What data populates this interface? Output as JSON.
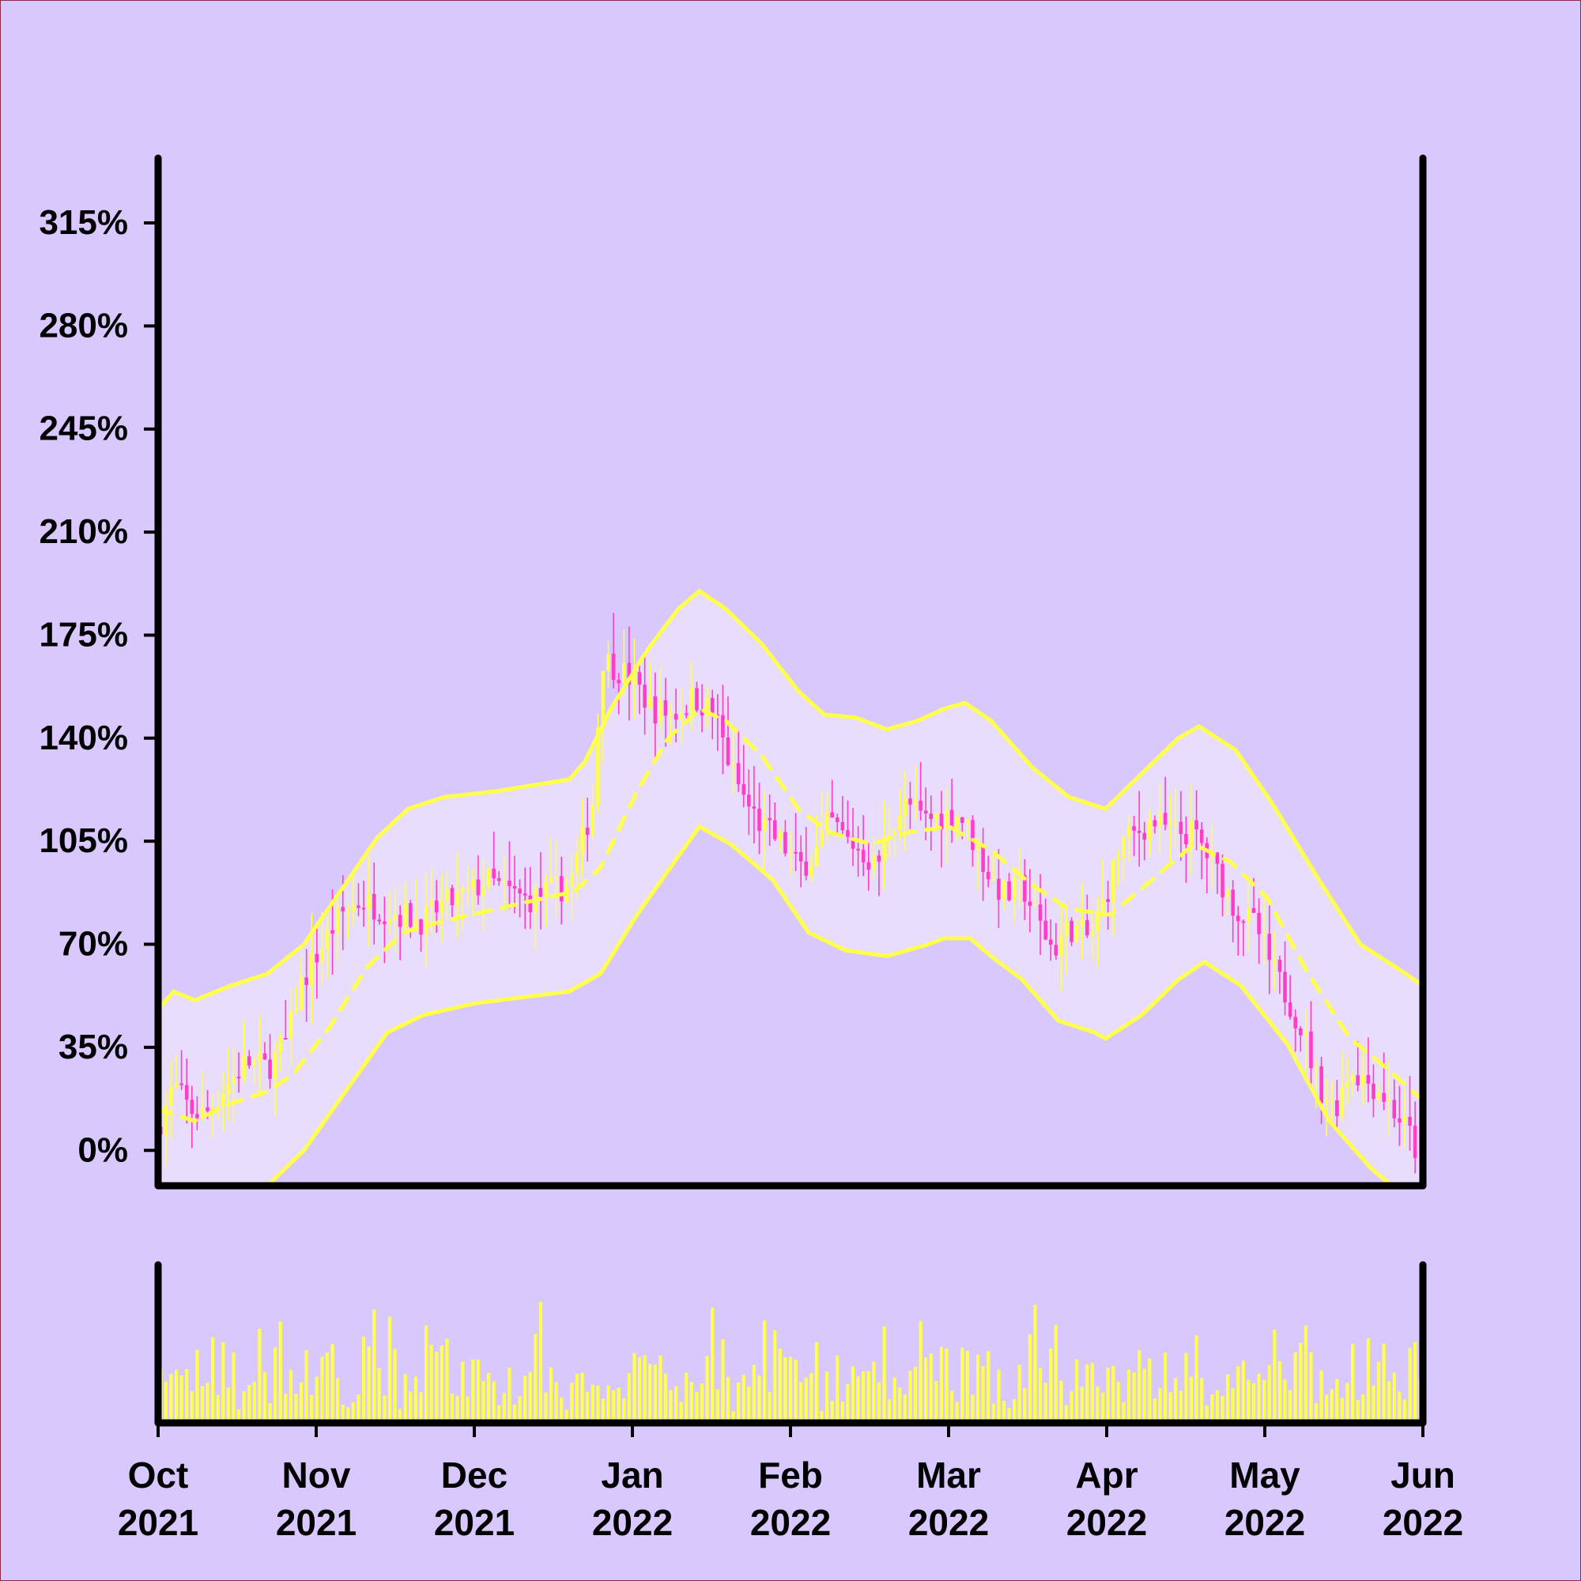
{
  "chart_data": {
    "type": "candlestick",
    "title": "",
    "xlabel": "",
    "ylabel": "",
    "y_tick_labels": [
      "0%",
      "35%",
      "70%",
      "105%",
      "140%",
      "175%",
      "210%",
      "245%",
      "280%",
      "315%"
    ],
    "y_tick_values": [
      0,
      35,
      70,
      105,
      140,
      175,
      210,
      245,
      280,
      315
    ],
    "ylim": [
      -12,
      337
    ],
    "x_tick_labels": [
      {
        "month": "Oct",
        "year": "2021"
      },
      {
        "month": "Nov",
        "year": "2021"
      },
      {
        "month": "Dec",
        "year": "2021"
      },
      {
        "month": "Jan",
        "year": "2022"
      },
      {
        "month": "Feb",
        "year": "2022"
      },
      {
        "month": "Mar",
        "year": "2022"
      },
      {
        "month": "Apr",
        "year": "2022"
      },
      {
        "month": "May",
        "year": "2022"
      },
      {
        "month": "Jun",
        "year": "2022"
      }
    ],
    "xlim": [
      "2021-10-01",
      "2022-06-01"
    ],
    "close_series": [
      [
        "2021-10-01",
        8
      ],
      [
        "2021-10-04",
        22
      ],
      [
        "2021-10-07",
        14
      ],
      [
        "2021-10-10",
        12
      ],
      [
        "2021-10-14",
        22
      ],
      [
        "2021-10-18",
        30
      ],
      [
        "2021-10-22",
        28
      ],
      [
        "2021-10-26",
        38
      ],
      [
        "2021-10-28",
        55
      ],
      [
        "2021-11-01",
        68
      ],
      [
        "2021-11-05",
        80
      ],
      [
        "2021-11-09",
        85
      ],
      [
        "2021-11-13",
        82
      ],
      [
        "2021-11-17",
        80
      ],
      [
        "2021-11-21",
        78
      ],
      [
        "2021-11-25",
        84
      ],
      [
        "2021-11-29",
        86
      ],
      [
        "2021-12-03",
        92
      ],
      [
        "2021-12-07",
        88
      ],
      [
        "2021-12-11",
        85
      ],
      [
        "2021-12-15",
        88
      ],
      [
        "2021-12-19",
        90
      ],
      [
        "2021-12-22",
        108
      ],
      [
        "2021-12-24",
        122
      ],
      [
        "2021-12-25",
        168
      ],
      [
        "2021-12-28",
        164
      ],
      [
        "2021-12-31",
        160
      ],
      [
        "2022-01-04",
        150
      ],
      [
        "2022-01-08",
        148
      ],
      [
        "2022-01-12",
        154
      ],
      [
        "2022-01-16",
        148
      ],
      [
        "2022-01-19",
        130
      ],
      [
        "2022-01-22",
        118
      ],
      [
        "2022-01-25",
        110
      ],
      [
        "2022-01-29",
        104
      ],
      [
        "2022-02-01",
        96
      ],
      [
        "2022-02-04",
        100
      ],
      [
        "2022-02-07",
        112
      ],
      [
        "2022-02-10",
        106
      ],
      [
        "2022-02-13",
        102
      ],
      [
        "2022-02-16",
        96
      ],
      [
        "2022-02-19",
        112
      ],
      [
        "2022-02-22",
        118
      ],
      [
        "2022-02-25",
        112
      ],
      [
        "2022-03-01",
        114
      ],
      [
        "2022-03-04",
        114
      ],
      [
        "2022-03-07",
        104
      ],
      [
        "2022-03-10",
        92
      ],
      [
        "2022-03-13",
        86
      ],
      [
        "2022-03-16",
        90
      ],
      [
        "2022-03-19",
        78
      ],
      [
        "2022-03-22",
        68
      ],
      [
        "2022-03-25",
        76
      ],
      [
        "2022-03-29",
        72
      ],
      [
        "2022-04-01",
        86
      ],
      [
        "2022-04-04",
        104
      ],
      [
        "2022-04-07",
        108
      ],
      [
        "2022-04-10",
        112
      ],
      [
        "2022-04-14",
        108
      ],
      [
        "2022-04-18",
        108
      ],
      [
        "2022-04-22",
        96
      ],
      [
        "2022-04-26",
        82
      ],
      [
        "2022-04-30",
        76
      ],
      [
        "2022-05-03",
        62
      ],
      [
        "2022-05-06",
        52
      ],
      [
        "2022-05-09",
        40
      ],
      [
        "2022-05-12",
        22
      ],
      [
        "2022-05-15",
        14
      ],
      [
        "2022-05-18",
        28
      ],
      [
        "2022-05-21",
        24
      ],
      [
        "2022-05-24",
        20
      ],
      [
        "2022-05-27",
        12
      ],
      [
        "2022-05-30",
        4
      ],
      [
        "2022-06-01",
        -10
      ]
    ],
    "moving_average": [
      [
        "2021-10-01",
        14
      ],
      [
        "2021-10-08",
        10
      ],
      [
        "2021-10-15",
        16
      ],
      [
        "2021-10-22",
        20
      ],
      [
        "2021-10-27",
        26
      ],
      [
        "2021-11-03",
        42
      ],
      [
        "2021-11-10",
        62
      ],
      [
        "2021-11-17",
        74
      ],
      [
        "2021-11-25",
        78
      ],
      [
        "2021-12-05",
        82
      ],
      [
        "2021-12-15",
        86
      ],
      [
        "2021-12-20",
        88
      ],
      [
        "2021-12-25",
        96
      ],
      [
        "2022-01-01",
        122
      ],
      [
        "2022-01-07",
        140
      ],
      [
        "2022-01-13",
        150
      ],
      [
        "2022-01-18",
        146
      ],
      [
        "2022-01-25",
        134
      ],
      [
        "2022-02-01",
        116
      ],
      [
        "2022-02-07",
        108
      ],
      [
        "2022-02-15",
        104
      ],
      [
        "2022-02-22",
        108
      ],
      [
        "2022-03-02",
        110
      ],
      [
        "2022-03-10",
        102
      ],
      [
        "2022-03-18",
        90
      ],
      [
        "2022-03-25",
        82
      ],
      [
        "2022-04-02",
        80
      ],
      [
        "2022-04-10",
        92
      ],
      [
        "2022-04-18",
        104
      ],
      [
        "2022-04-25",
        98
      ],
      [
        "2022-05-02",
        86
      ],
      [
        "2022-05-10",
        60
      ],
      [
        "2022-05-18",
        38
      ],
      [
        "2022-05-25",
        28
      ],
      [
        "2022-06-01",
        17
      ]
    ],
    "upper_band": [
      [
        "2021-10-01",
        48
      ],
      [
        "2021-10-04",
        54
      ],
      [
        "2021-10-08",
        51
      ],
      [
        "2021-10-15",
        56
      ],
      [
        "2021-10-22",
        60
      ],
      [
        "2021-10-29",
        70
      ],
      [
        "2021-11-05",
        88
      ],
      [
        "2021-11-12",
        106
      ],
      [
        "2021-11-18",
        116
      ],
      [
        "2021-11-25",
        120
      ],
      [
        "2021-12-05",
        122
      ],
      [
        "2021-12-12",
        124
      ],
      [
        "2021-12-19",
        126
      ],
      [
        "2021-12-22",
        132
      ],
      [
        "2021-12-27",
        150
      ],
      [
        "2022-01-03",
        170
      ],
      [
        "2022-01-09",
        184
      ],
      [
        "2022-01-13",
        190
      ],
      [
        "2022-01-18",
        184
      ],
      [
        "2022-01-25",
        172
      ],
      [
        "2022-02-01",
        156
      ],
      [
        "2022-02-06",
        148
      ],
      [
        "2022-02-12",
        147
      ],
      [
        "2022-02-18",
        143
      ],
      [
        "2022-02-24",
        146
      ],
      [
        "2022-03-01",
        150
      ],
      [
        "2022-03-05",
        152
      ],
      [
        "2022-03-10",
        146
      ],
      [
        "2022-03-18",
        130
      ],
      [
        "2022-03-25",
        120
      ],
      [
        "2022-04-01",
        116
      ],
      [
        "2022-04-08",
        128
      ],
      [
        "2022-04-15",
        140
      ],
      [
        "2022-04-19",
        144
      ],
      [
        "2022-04-26",
        136
      ],
      [
        "2022-05-03",
        118
      ],
      [
        "2022-05-12",
        92
      ],
      [
        "2022-05-20",
        70
      ],
      [
        "2022-05-27",
        62
      ],
      [
        "2022-06-01",
        56
      ]
    ],
    "lower_band": [
      [
        "2021-10-22",
        -12
      ],
      [
        "2021-10-29",
        0
      ],
      [
        "2021-11-06",
        20
      ],
      [
        "2021-11-14",
        40
      ],
      [
        "2021-11-21",
        46
      ],
      [
        "2021-12-01",
        50
      ],
      [
        "2021-12-10",
        52
      ],
      [
        "2021-12-19",
        54
      ],
      [
        "2021-12-25",
        60
      ],
      [
        "2022-01-01",
        80
      ],
      [
        "2022-01-09",
        100
      ],
      [
        "2022-01-13",
        110
      ],
      [
        "2022-01-19",
        104
      ],
      [
        "2022-01-27",
        92
      ],
      [
        "2022-02-03",
        74
      ],
      [
        "2022-02-10",
        68
      ],
      [
        "2022-02-18",
        66
      ],
      [
        "2022-02-26",
        70
      ],
      [
        "2022-03-01",
        72
      ],
      [
        "2022-03-06",
        72
      ],
      [
        "2022-03-10",
        66
      ],
      [
        "2022-03-16",
        58
      ],
      [
        "2022-03-23",
        44
      ],
      [
        "2022-03-30",
        40
      ],
      [
        "2022-04-01",
        38
      ],
      [
        "2022-04-08",
        46
      ],
      [
        "2022-04-15",
        58
      ],
      [
        "2022-04-20",
        64
      ],
      [
        "2022-04-27",
        56
      ],
      [
        "2022-05-06",
        36
      ],
      [
        "2022-05-14",
        10
      ],
      [
        "2022-05-22",
        -6
      ],
      [
        "2022-05-26",
        -12
      ]
    ],
    "volume_relative": [
      0.45,
      0.2,
      0.6,
      0.95,
      0.3,
      0.4,
      0.85,
      0.7,
      0.25,
      0.4,
      0.6,
      0.5,
      0.3,
      0.75,
      0.55,
      0.2,
      0.45,
      0.6,
      0.35,
      0.5,
      0.8,
      0.3,
      0.4,
      0.55,
      0.25,
      0.6,
      0.45,
      0.7,
      0.2,
      0.35,
      0.5,
      0.15,
      0.3,
      0.45,
      0.6,
      0.2,
      0.25,
      0.4,
      0.55,
      0.35,
      0.5,
      0.3,
      0.45,
      0.6,
      0.4,
      0.25,
      0.35,
      0.5,
      0.55,
      0.45,
      0.65,
      0.7,
      0.5,
      0.6,
      0.4,
      0.45,
      0.35,
      0.3,
      0.25,
      0.5,
      0.55,
      0.7,
      0.75,
      0.6,
      0.5,
      0.65,
      0.8,
      0.85,
      0.7,
      0.9,
      0.6,
      0.55,
      0.85,
      0.5
    ]
  }
}
